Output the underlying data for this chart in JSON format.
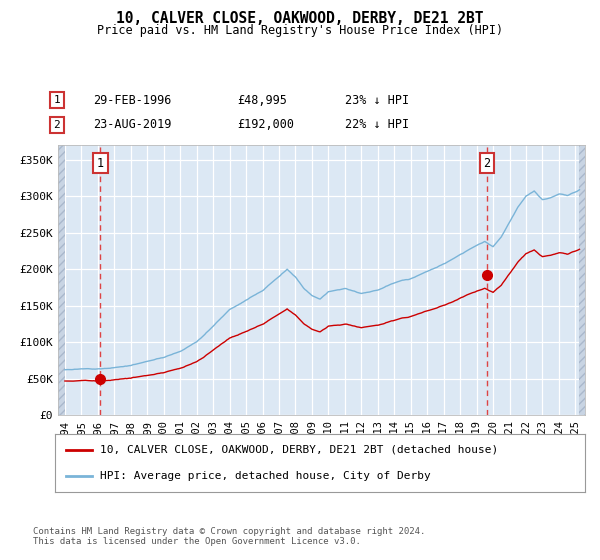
{
  "title": "10, CALVER CLOSE, OAKWOOD, DERBY, DE21 2BT",
  "subtitle": "Price paid vs. HM Land Registry's House Price Index (HPI)",
  "sale1_price": 48995,
  "sale2_price": 192000,
  "legend_line1": "10, CALVER CLOSE, OAKWOOD, DERBY, DE21 2BT (detached house)",
  "legend_line2": "HPI: Average price, detached house, City of Derby",
  "footnote": "Contains HM Land Registry data © Crown copyright and database right 2024.\nThis data is licensed under the Open Government Licence v3.0.",
  "hpi_color": "#7ab4d8",
  "price_color": "#cc0000",
  "dashed_line_color": "#dd4444",
  "plot_bg_color": "#dce8f4",
  "grid_color": "#ffffff",
  "ylim": [
    0,
    370000
  ],
  "yticks": [
    0,
    50000,
    100000,
    150000,
    200000,
    250000,
    300000,
    350000
  ],
  "ytick_labels": [
    "£0",
    "£50K",
    "£100K",
    "£150K",
    "£200K",
    "£250K",
    "£300K",
    "£350K"
  ],
  "sale1_date_str": "29-FEB-1996",
  "sale2_date_str": "23-AUG-2019",
  "sale1_price_str": "£48,995",
  "sale2_price_str": "£192,000",
  "sale1_pct_str": "23% ↓ HPI",
  "sale2_pct_str": "22% ↓ HPI"
}
